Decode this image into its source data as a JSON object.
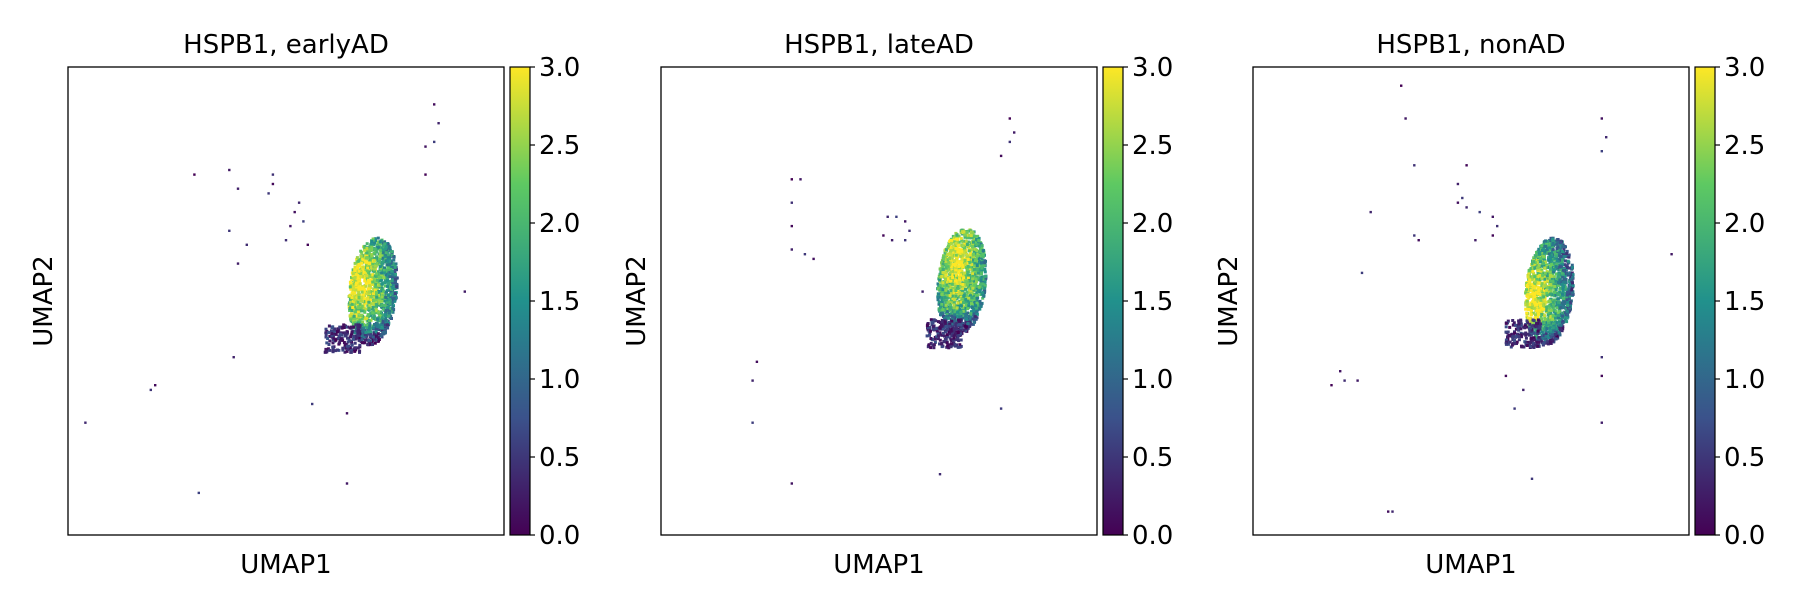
{
  "figure": {
    "background": "#ffffff"
  },
  "chart_data": [
    {
      "type": "scatter",
      "title": "HSPB1, earlyAD",
      "xlabel": "UMAP1",
      "ylabel": "UMAP2",
      "xlim": [
        0,
        100
      ],
      "ylim": [
        0,
        100
      ],
      "colorbar": {
        "label": "",
        "min": 0.0,
        "max": 3.0,
        "ticks": [
          "0.0",
          "0.5",
          "1.0",
          "1.5",
          "2.0",
          "2.5",
          "3.0"
        ],
        "colormap": "viridis",
        "colors": [
          "#440154",
          "#3b528b",
          "#21918c",
          "#5ec962",
          "#fde725"
        ]
      },
      "cluster": {
        "center": [
          70,
          52
        ],
        "high_center": [
          67,
          54
        ],
        "tail_center": [
          63,
          42
        ],
        "mean_expression": 1.9
      },
      "scatter_points": [
        [
          29,
          77
        ],
        [
          37,
          78
        ],
        [
          47,
          77
        ],
        [
          47,
          75
        ],
        [
          39,
          74
        ],
        [
          46,
          73
        ],
        [
          52,
          69
        ],
        [
          53,
          71
        ],
        [
          54,
          67
        ],
        [
          51,
          66
        ],
        [
          50,
          63
        ],
        [
          55,
          62
        ],
        [
          39,
          58
        ],
        [
          37,
          65
        ],
        [
          84,
          92
        ],
        [
          85,
          88
        ],
        [
          84,
          84
        ],
        [
          82,
          83
        ],
        [
          41,
          62
        ],
        [
          82,
          77
        ],
        [
          91,
          52
        ],
        [
          19,
          31
        ],
        [
          20,
          32
        ],
        [
          38,
          38
        ],
        [
          56,
          28
        ],
        [
          64,
          26
        ],
        [
          4,
          24
        ],
        [
          30,
          9
        ],
        [
          64,
          11
        ]
      ]
    },
    {
      "type": "scatter",
      "title": "HSPB1, lateAD",
      "xlabel": "UMAP1",
      "ylabel": "UMAP2",
      "xlim": [
        0,
        100
      ],
      "ylim": [
        0,
        100
      ],
      "colorbar": {
        "label": "",
        "min": 0.0,
        "max": 3.0,
        "ticks": [
          "0.0",
          "0.5",
          "1.0",
          "1.5",
          "2.0",
          "2.5",
          "3.0"
        ],
        "colormap": "viridis",
        "colors": [
          "#440154",
          "#3b528b",
          "#21918c",
          "#5ec962",
          "#fde725"
        ]
      },
      "cluster": {
        "center": [
          69,
          54
        ],
        "high_center": [
          68,
          58
        ],
        "tail_center": [
          65,
          43
        ],
        "mean_expression": 1.8
      },
      "scatter_points": [
        [
          30,
          76
        ],
        [
          32,
          76
        ],
        [
          30,
          71
        ],
        [
          30,
          66
        ],
        [
          30,
          61
        ],
        [
          33,
          60
        ],
        [
          35,
          59
        ],
        [
          52,
          68
        ],
        [
          54,
          68
        ],
        [
          56,
          67
        ],
        [
          57,
          65
        ],
        [
          51,
          64
        ],
        [
          53,
          63
        ],
        [
          56,
          63
        ],
        [
          22,
          37
        ],
        [
          21,
          33
        ],
        [
          21,
          24
        ],
        [
          30,
          11
        ],
        [
          64,
          13
        ],
        [
          80,
          89
        ],
        [
          81,
          86
        ],
        [
          80,
          84
        ],
        [
          78,
          81
        ],
        [
          60,
          52
        ],
        [
          78,
          27
        ]
      ]
    },
    {
      "type": "scatter",
      "title": "HSPB1, nonAD",
      "xlabel": "UMAP1",
      "ylabel": "UMAP2",
      "xlim": [
        0,
        100
      ],
      "ylim": [
        0,
        100
      ],
      "colorbar": {
        "label": "",
        "min": 0.0,
        "max": 3.0,
        "ticks": [
          "0.0",
          "0.5",
          "1.0",
          "1.5",
          "2.0",
          "2.5",
          "3.0"
        ],
        "colormap": "viridis",
        "colors": [
          "#440154",
          "#3b528b",
          "#21918c",
          "#5ec962",
          "#fde725"
        ]
      },
      "cluster": {
        "center": [
          68,
          52
        ],
        "high_center": [
          64,
          50
        ],
        "tail_center": [
          62,
          43
        ],
        "mean_expression": 1.9
      },
      "scatter_points": [
        [
          34,
          96
        ],
        [
          35,
          89
        ],
        [
          37,
          79
        ],
        [
          49,
          79
        ],
        [
          47,
          75
        ],
        [
          48,
          72
        ],
        [
          47,
          71
        ],
        [
          49,
          70
        ],
        [
          52,
          69
        ],
        [
          55,
          68
        ],
        [
          56,
          66
        ],
        [
          55,
          64
        ],
        [
          51,
          63
        ],
        [
          37,
          64
        ],
        [
          38,
          63
        ],
        [
          27,
          69
        ],
        [
          25,
          56
        ],
        [
          20,
          35
        ],
        [
          21,
          33
        ],
        [
          18,
          32
        ],
        [
          24,
          33
        ],
        [
          58,
          41
        ],
        [
          58,
          34
        ],
        [
          62,
          31
        ],
        [
          60,
          27
        ],
        [
          80,
          89
        ],
        [
          81,
          85
        ],
        [
          80,
          82
        ],
        [
          96,
          60
        ],
        [
          80,
          38
        ],
        [
          80,
          34
        ],
        [
          80,
          24
        ],
        [
          64,
          12
        ],
        [
          31,
          5
        ],
        [
          32,
          5
        ]
      ]
    }
  ]
}
